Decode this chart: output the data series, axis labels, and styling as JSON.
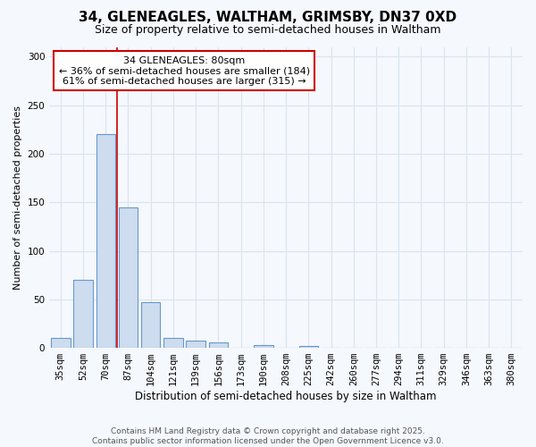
{
  "title1": "34, GLENEAGLES, WALTHAM, GRIMSBY, DN37 0XD",
  "title2": "Size of property relative to semi-detached houses in Waltham",
  "xlabel": "Distribution of semi-detached houses by size in Waltham",
  "ylabel": "Number of semi-detached properties",
  "categories": [
    "35sqm",
    "52sqm",
    "70sqm",
    "87sqm",
    "104sqm",
    "121sqm",
    "139sqm",
    "156sqm",
    "173sqm",
    "190sqm",
    "208sqm",
    "225sqm",
    "242sqm",
    "260sqm",
    "277sqm",
    "294sqm",
    "311sqm",
    "329sqm",
    "346sqm",
    "363sqm",
    "380sqm"
  ],
  "values": [
    10,
    70,
    220,
    145,
    47,
    10,
    7,
    6,
    0,
    3,
    0,
    2,
    0,
    0,
    0,
    0,
    0,
    0,
    0,
    0,
    0
  ],
  "bar_color": "#cddcee",
  "bar_edge_color": "#6699cc",
  "vline_x": 2.5,
  "vline_color": "#cc0000",
  "annotation_text": "34 GLENEAGLES: 80sqm\n← 36% of semi-detached houses are smaller (184)\n61% of semi-detached houses are larger (315) →",
  "annotation_box_color": "#ffffff",
  "annotation_box_edge": "#cc0000",
  "ylim_max": 310,
  "yticks": [
    0,
    50,
    100,
    150,
    200,
    250,
    300
  ],
  "footer": "Contains HM Land Registry data © Crown copyright and database right 2025.\nContains public sector information licensed under the Open Government Licence v3.0.",
  "bg_color": "#f5f8fc",
  "grid_color": "#d8e4f0",
  "title1_fontsize": 11,
  "title2_fontsize": 9,
  "xlabel_fontsize": 8.5,
  "ylabel_fontsize": 8,
  "tick_fontsize": 7.5,
  "annotation_fontsize": 8,
  "footer_fontsize": 6.5
}
